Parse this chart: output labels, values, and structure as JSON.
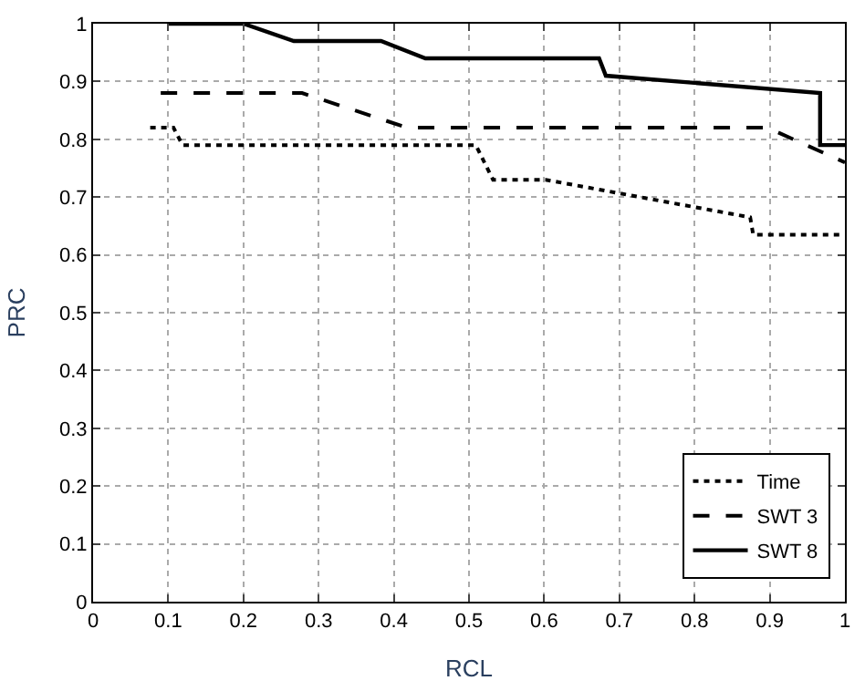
{
  "chart_data": {
    "type": "line",
    "xlabel": "RCL",
    "ylabel": "PRC",
    "xlim": [
      0,
      1
    ],
    "ylim": [
      0,
      1
    ],
    "xticks": [
      0,
      0.1,
      0.2,
      0.3,
      0.4,
      0.5,
      0.6,
      0.7,
      0.8,
      0.9,
      1
    ],
    "yticks": [
      0,
      0.1,
      0.2,
      0.3,
      0.4,
      0.5,
      0.6,
      0.7,
      0.8,
      0.9,
      1
    ],
    "grid": true,
    "legend": "bottom right",
    "series": [
      {
        "name": "Time",
        "color": "#000000",
        "line_style": "dotted",
        "x": [
          0.076,
          0.107,
          0.119,
          0.509,
          0.532,
          0.602,
          0.874,
          0.878,
          0.995
        ],
        "values": [
          0.82,
          0.82,
          0.79,
          0.79,
          0.73,
          0.73,
          0.665,
          0.635,
          0.635
        ]
      },
      {
        "name": "SWT 3",
        "color": "#000000",
        "line_style": "dashed",
        "x": [
          0.09,
          0.278,
          0.418,
          0.897,
          1.0
        ],
        "values": [
          0.88,
          0.88,
          0.82,
          0.82,
          0.76
        ]
      },
      {
        "name": "SWT 8",
        "color": "#000000",
        "line_style": "solid",
        "x": [
          0.1,
          0.2,
          0.267,
          0.383,
          0.442,
          0.673,
          0.682,
          0.967,
          0.967,
          1.0
        ],
        "values": [
          1,
          1,
          0.97,
          0.97,
          0.94,
          0.94,
          0.91,
          0.88,
          0.79,
          0.79
        ]
      }
    ]
  }
}
